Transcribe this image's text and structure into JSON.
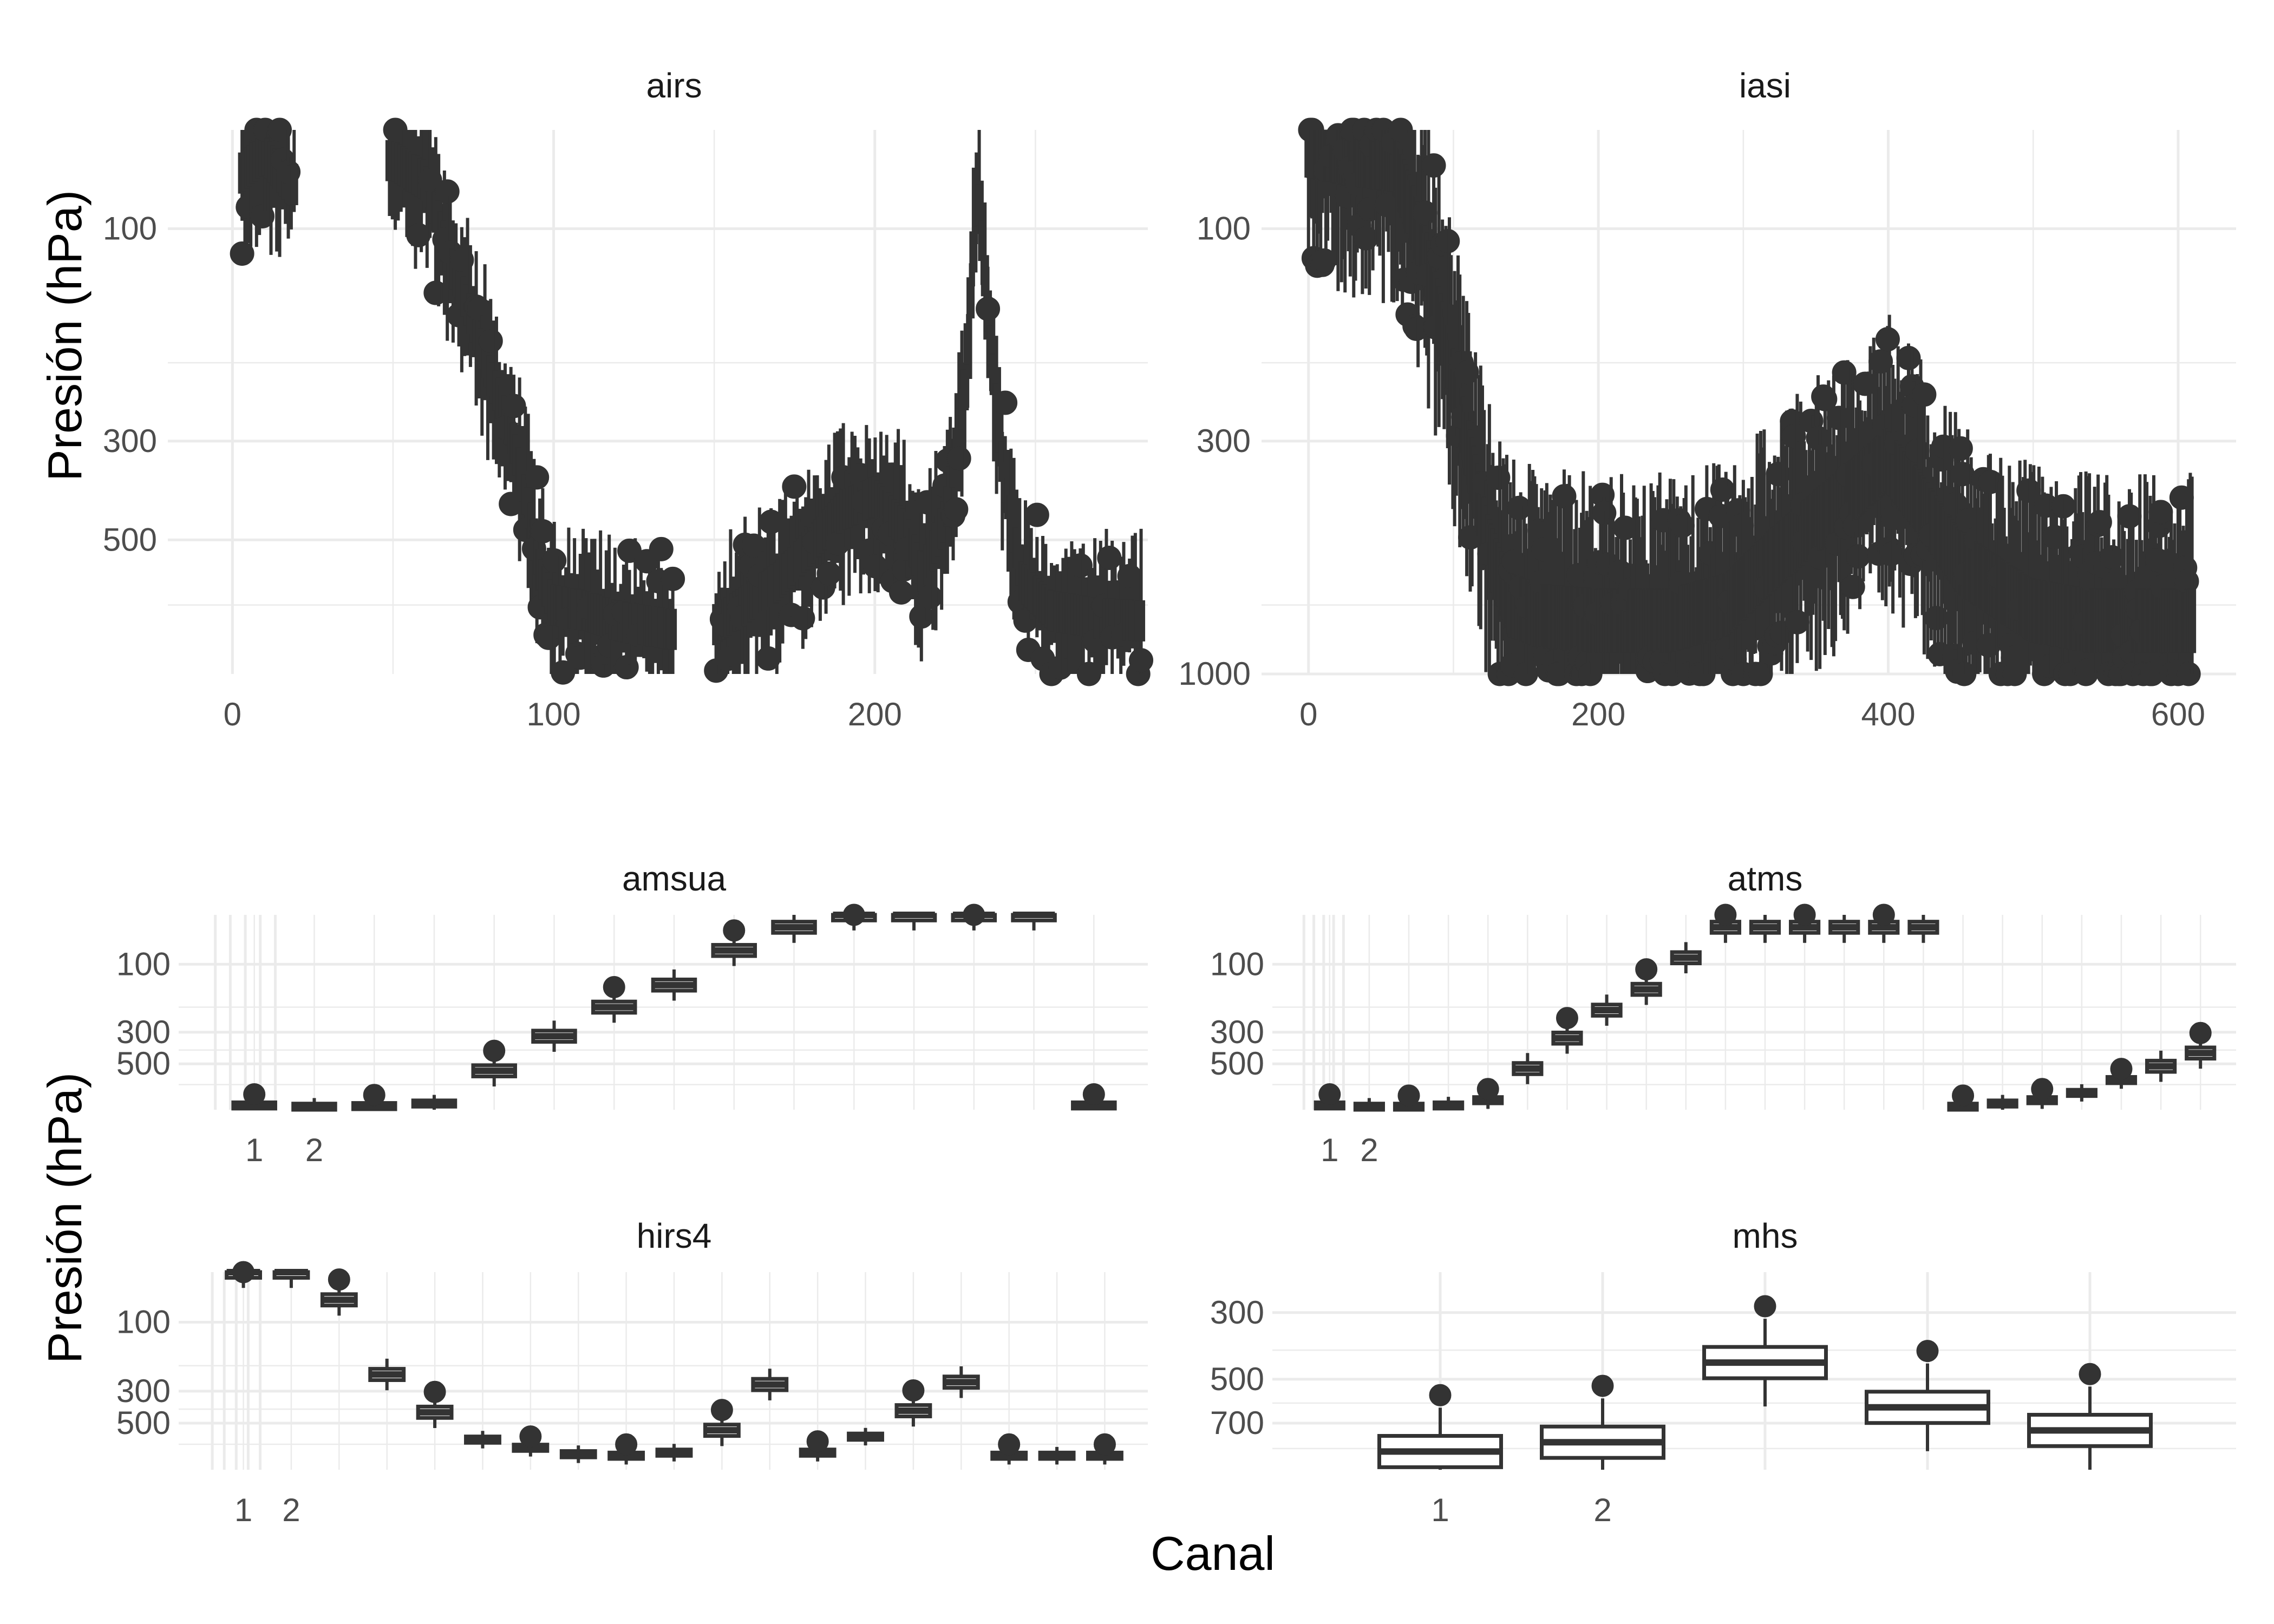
{
  "figure": {
    "y_title": "Presión (hPa)",
    "x_title": "Canal"
  },
  "chart_data": [
    {
      "type": "boxplot",
      "title": "airs",
      "y_scale": "log",
      "y_reversed": true,
      "x_range": [
        -10,
        285
      ],
      "y_range": [
        1000,
        60
      ],
      "x_ticks": [
        0,
        100,
        200
      ],
      "y_ticks": [
        100,
        300,
        500
      ],
      "grid": true,
      "profile": [
        [
          3,
          75
        ],
        [
          10,
          68
        ],
        [
          18,
          80
        ],
        [
          50,
          70
        ],
        [
          60,
          78
        ],
        [
          64,
          95
        ],
        [
          68,
          120
        ],
        [
          72,
          140
        ],
        [
          76,
          170
        ],
        [
          80,
          210
        ],
        [
          84,
          250
        ],
        [
          88,
          310
        ],
        [
          92,
          420
        ],
        [
          96,
          600
        ],
        [
          100,
          700
        ],
        [
          110,
          720
        ],
        [
          120,
          760
        ],
        [
          130,
          780
        ],
        [
          140,
          800
        ],
        [
          150,
          780
        ],
        [
          160,
          700
        ],
        [
          170,
          620
        ],
        [
          180,
          520
        ],
        [
          190,
          430
        ],
        [
          200,
          400
        ],
        [
          210,
          480
        ],
        [
          215,
          600
        ],
        [
          222,
          450
        ],
        [
          228,
          230
        ],
        [
          232,
          80
        ],
        [
          236,
          180
        ],
        [
          240,
          350
        ],
        [
          246,
          620
        ],
        [
          255,
          720
        ],
        [
          270,
          750
        ],
        [
          283,
          760
        ]
      ]
    },
    {
      "type": "boxplot",
      "title": "iasi",
      "y_scale": "log",
      "y_reversed": true,
      "x_range": [
        -10,
        640
      ],
      "y_range": [
        1000,
        60
      ],
      "x_ticks": [
        0,
        200,
        400,
        600
      ],
      "y_ticks": [
        100,
        300,
        1000
      ],
      "grid": true,
      "profile": [
        [
          0,
          65
        ],
        [
          30,
          68
        ],
        [
          60,
          70
        ],
        [
          80,
          110
        ],
        [
          95,
          180
        ],
        [
          110,
          300
        ],
        [
          125,
          520
        ],
        [
          140,
          700
        ],
        [
          160,
          740
        ],
        [
          200,
          760
        ],
        [
          250,
          760
        ],
        [
          290,
          700
        ],
        [
          320,
          560
        ],
        [
          350,
          460
        ],
        [
          380,
          380
        ],
        [
          400,
          330
        ],
        [
          420,
          400
        ],
        [
          450,
          560
        ],
        [
          500,
          720
        ],
        [
          540,
          760
        ],
        [
          570,
          760
        ],
        [
          610,
          760
        ]
      ]
    },
    {
      "type": "boxplot",
      "title": "amsua",
      "y_scale": "log",
      "y_reversed": true,
      "x_ticks": [
        "1",
        "2"
      ],
      "y_ticks": [
        100,
        300,
        500
      ],
      "grid": true,
      "medians": [
        980,
        1000,
        990,
        950,
        560,
        320,
        200,
        140,
        80,
        55,
        45,
        45,
        45,
        45,
        980
      ]
    },
    {
      "type": "boxplot",
      "title": "atms",
      "y_scale": "log",
      "y_reversed": true,
      "x_ticks": [
        "1",
        "2"
      ],
      "y_ticks": [
        100,
        300,
        500
      ],
      "grid": true,
      "medians": [
        980,
        1000,
        1000,
        980,
        900,
        540,
        330,
        210,
        150,
        90,
        55,
        55,
        55,
        55,
        55,
        55,
        1000,
        950,
        900,
        800,
        650,
        520,
        420
      ]
    },
    {
      "type": "boxplot",
      "title": "hirs4",
      "y_scale": "log",
      "y_reversed": true,
      "x_ticks": [
        "1",
        "2"
      ],
      "y_ticks": [
        100,
        300,
        500
      ],
      "grid": true,
      "medians": [
        45,
        45,
        70,
        230,
        420,
        650,
        740,
        820,
        840,
        800,
        560,
        270,
        800,
        620,
        410,
        260,
        840,
        840,
        840
      ]
    },
    {
      "type": "boxplot",
      "title": "mhs",
      "y_scale": "log",
      "y_reversed": true,
      "x_ticks": [
        "1",
        "2"
      ],
      "y_ticks": [
        300,
        500,
        700
      ],
      "grid": true,
      "medians": [
        870,
        810,
        440,
        620,
        740
      ]
    }
  ]
}
